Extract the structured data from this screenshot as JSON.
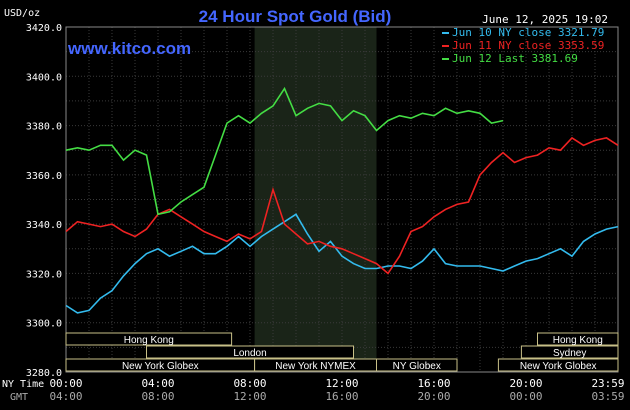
{
  "chart_data": {
    "type": "line",
    "title": "24 Hour Spot Gold (Bid)",
    "watermark": "www.kitco.com",
    "ylabel": "USD/oz",
    "timestamp": "June 12, 2025 19:02",
    "ylim": [
      3280,
      3420
    ],
    "yticks": [
      "3420.0",
      "3400.0",
      "3380.0",
      "3360.0",
      "3340.0",
      "3320.0",
      "3300.0",
      "3280.0"
    ],
    "ytick_values": [
      3420,
      3400,
      3380,
      3360,
      3340,
      3320,
      3300,
      3280
    ],
    "xlim": [
      0,
      24
    ],
    "xticks_ny": [
      "00:00",
      "04:00",
      "08:00",
      "12:00",
      "16:00",
      "20:00",
      "23:59"
    ],
    "xticks_gmt": [
      "04:00",
      "08:00",
      "12:00",
      "16:00",
      "20:00",
      "00:00",
      "03:59"
    ],
    "xtick_positions": [
      0,
      4,
      8,
      12,
      16,
      20,
      24
    ],
    "row_label_ny": "NY Time",
    "row_label_gmt": "GMT",
    "shaded_session_hours": [
      8.2,
      13.5
    ],
    "grid": true,
    "legend_position": "top-right",
    "series": [
      {
        "name": "Jun 10 NY close 3321.79",
        "color": "#33bbee",
        "x": [
          0,
          0.5,
          1,
          1.5,
          2,
          2.5,
          3,
          3.5,
          4,
          4.5,
          5,
          5.5,
          6,
          6.5,
          7,
          7.5,
          8,
          8.5,
          9,
          9.5,
          10,
          10.5,
          11,
          11.5,
          12,
          12.5,
          13,
          13.5,
          14,
          14.5,
          15,
          15.5,
          16,
          16.5,
          17,
          17.5,
          18,
          18.5,
          19,
          19.5,
          20,
          20.5,
          21,
          21.5,
          22,
          22.5,
          23,
          23.5,
          24
        ],
        "y": [
          3307,
          3304,
          3305,
          3310,
          3313,
          3319,
          3324,
          3328,
          3330,
          3327,
          3329,
          3331,
          3328,
          3328,
          3331,
          3335,
          3331,
          3335,
          3338,
          3341,
          3344,
          3336,
          3329,
          3333,
          3327,
          3324,
          3322,
          3322,
          3323,
          3323,
          3322,
          3325,
          3330,
          3324,
          3323,
          3323,
          3323,
          3322,
          3321,
          3323,
          3325,
          3326,
          3328,
          3330,
          3327,
          3333,
          3336,
          3338,
          3339
        ]
      },
      {
        "name": "Jun 11 NY close 3353.59",
        "color": "#ee2222",
        "x": [
          0,
          0.5,
          1,
          1.5,
          2,
          2.5,
          3,
          3.5,
          4,
          4.5,
          5,
          5.5,
          6,
          6.5,
          7,
          7.5,
          8,
          8.5,
          9,
          9.5,
          10,
          10.5,
          11,
          11.5,
          12,
          12.5,
          13,
          13.5,
          14,
          14.5,
          15,
          15.5,
          16,
          16.5,
          17,
          17.5,
          18,
          18.5,
          19,
          19.5,
          20,
          20.5,
          21,
          21.5,
          22,
          22.5,
          23,
          23.5,
          24
        ],
        "y": [
          3337,
          3341,
          3340,
          3339,
          3340,
          3337,
          3335,
          3338,
          3344,
          3346,
          3343,
          3340,
          3337,
          3335,
          3333,
          3336,
          3334,
          3337,
          3354,
          3340,
          3336,
          3332,
          3333,
          3331,
          3330,
          3328,
          3326,
          3324,
          3320,
          3327,
          3337,
          3339,
          3343,
          3346,
          3348,
          3349,
          3360,
          3365,
          3369,
          3365,
          3367,
          3368,
          3371,
          3370,
          3375,
          3372,
          3374,
          3375,
          3372
        ]
      },
      {
        "name": "Jun 12 Last 3381.69",
        "color": "#44dd44",
        "x": [
          0,
          0.5,
          1,
          1.5,
          2,
          2.5,
          3,
          3.5,
          4,
          4.5,
          5,
          5.5,
          6,
          6.5,
          7,
          7.5,
          8,
          8.5,
          9,
          9.5,
          10,
          10.5,
          11,
          11.5,
          12,
          12.5,
          13,
          13.5,
          14,
          14.5,
          15,
          15.5,
          16,
          16.5,
          17,
          17.5,
          18,
          18.5,
          19
        ],
        "y": [
          3370,
          3371,
          3370,
          3372,
          3372,
          3366,
          3370,
          3368,
          3344,
          3345,
          3349,
          3352,
          3355,
          3368,
          3381,
          3384,
          3381,
          3385,
          3388,
          3395,
          3384,
          3387,
          3389,
          3388,
          3382,
          3386,
          3384,
          3378,
          3382,
          3384,
          3383,
          3385,
          3384,
          3387,
          3385,
          3386,
          3385,
          3381,
          3382
        ]
      }
    ]
  },
  "sessions": [
    {
      "label": "Hong Kong",
      "row": 1,
      "start": 0,
      "end": 7.2
    },
    {
      "label": "London",
      "row": 2,
      "start": 3.5,
      "end": 12.5
    },
    {
      "label": "New York Globex",
      "row": 3,
      "start": 0,
      "end": 8.2
    },
    {
      "label": "New York NYMEX",
      "row": 3,
      "start": 8.2,
      "end": 13.5
    },
    {
      "label": "NY Globex",
      "row": 3,
      "start": 13.5,
      "end": 17
    },
    {
      "label": "Hong Kong",
      "row": 1,
      "start": 20.5,
      "end": 24
    },
    {
      "label": "Sydney",
      "row": 2,
      "start": 19.8,
      "end": 24
    },
    {
      "label": "New York Globex",
      "row": 3,
      "start": 18.8,
      "end": 24
    }
  ],
  "colors": {
    "background": "#000000",
    "plot": "#000000",
    "shade": "#1a2418",
    "grid": "#3a3a3a",
    "title": "#4466ff",
    "watermark": "#4466ff",
    "text": "#ffffff",
    "session_fill": "#000000",
    "session_border": "#c8c088"
  }
}
